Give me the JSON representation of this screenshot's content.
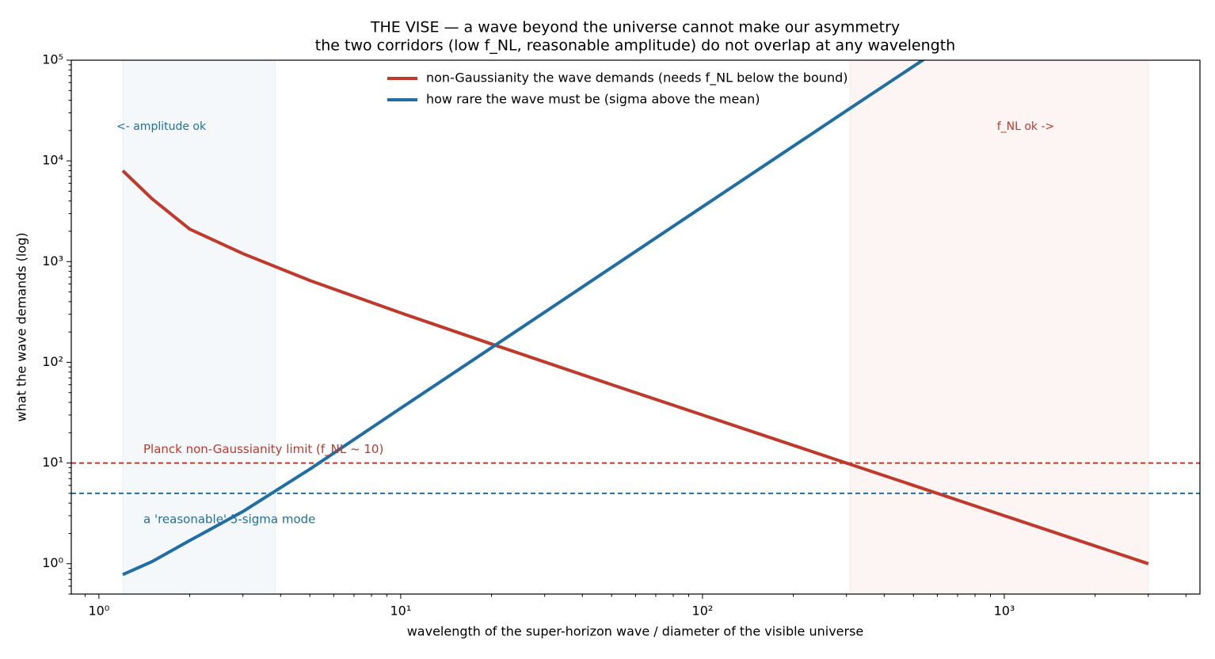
{
  "chart_data": {
    "type": "line",
    "title": "THE VISE — a wave beyond the universe cannot make our asymmetry",
    "subtitle": "the two corridors (low f_NL, reasonable amplitude) do not overlap at any wavelength",
    "x_label": "wavelength of the super-horizon wave  /  diameter of the visible universe",
    "y_label": "what the wave demands (log)",
    "xscale": "log",
    "yscale": "log",
    "xlim": [
      0.81,
      4450
    ],
    "ylim": [
      0.5,
      100000
    ],
    "xticks": [
      {
        "value": 1,
        "label": "10⁰"
      },
      {
        "value": 10,
        "label": "10¹"
      },
      {
        "value": 100,
        "label": "10²"
      },
      {
        "value": 1000,
        "label": "10³"
      }
    ],
    "yticks": [
      {
        "value": 1,
        "label": "10⁰"
      },
      {
        "value": 10,
        "label": "10¹"
      },
      {
        "value": 100,
        "label": "10²"
      },
      {
        "value": 1000,
        "label": "10³"
      },
      {
        "value": 10000,
        "label": "10⁴"
      },
      {
        "value": 100000,
        "label": "10⁵"
      }
    ],
    "legend": "upper center",
    "series": [
      {
        "name": "non-Gaussianity the wave demands  (needs f_NL below the bound)",
        "color": "#c0392b",
        "x": [
          1.2,
          1.5,
          2,
          3,
          5,
          10,
          20,
          50,
          100,
          200,
          300,
          500,
          1000,
          2000,
          3000
        ],
        "values": [
          8000,
          4200,
          2100,
          1200,
          650,
          310,
          152,
          60,
          30,
          15,
          10,
          6,
          3,
          1.5,
          1
        ]
      },
      {
        "name": "how rare the wave must be  (sigma above the mean)",
        "color": "#1f6fa5",
        "x": [
          1.2,
          1.5,
          2,
          3,
          5,
          10,
          20,
          50,
          100,
          200,
          300,
          550
        ],
        "values": [
          0.78,
          1.05,
          1.7,
          3.3,
          8.7,
          35,
          140,
          875,
          3500,
          14000,
          31500,
          105000
        ]
      }
    ],
    "hlines": [
      {
        "value": 10,
        "color": "#c0392b",
        "label": "Planck non-Gaussianity limit (f_NL ~ 10)"
      },
      {
        "value": 5,
        "color": "#1f6fa5",
        "label": "a 'reasonable' 5-sigma mode"
      }
    ],
    "spans": [
      {
        "x0": 1.2,
        "x1": 3.84,
        "color": "#1f6fa5",
        "label": "<- amplitude ok"
      },
      {
        "x0": 308,
        "x1": 3000,
        "color": "#c0392b",
        "label": "f_NL ok ->"
      }
    ]
  }
}
